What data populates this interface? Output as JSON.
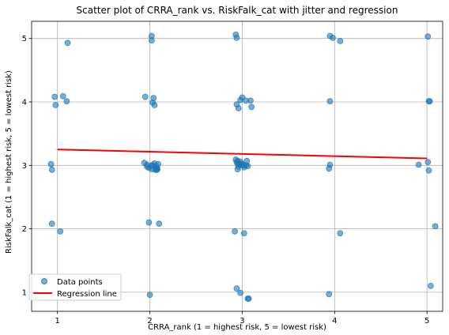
{
  "chart_data": {
    "type": "scatter",
    "title": "Scatter plot of CRRA_rank vs. RiskFalk_cat with jitter and regression",
    "xlabel": "CRRA_rank (1 = highest risk, 5 = lowest risk)",
    "ylabel": "RiskFalk_cat (1 = highest risk, 5 = lowest risk)",
    "xlim": [
      0.72,
      5.17
    ],
    "ylim": [
      0.7,
      5.27
    ],
    "xticks": [
      1,
      2,
      3,
      4,
      5
    ],
    "yticks": [
      1,
      2,
      3,
      4,
      5
    ],
    "grid": true,
    "legend_position": "lower-left",
    "colors": {
      "points": "#1f77b4",
      "regression": "#ff0000"
    },
    "series": [
      {
        "name": "Data points",
        "kind": "scatter",
        "x": [
          1.11,
          0.97,
          1.06,
          1.1,
          0.98,
          0.93,
          0.94,
          0.94,
          1.03,
          1.95,
          2.02,
          2.02,
          1.94,
          2.04,
          2.03,
          2.05,
          1.97,
          1.99,
          2.03,
          2.05,
          2.07,
          2.09,
          2.07,
          1.97,
          2.02,
          2.06,
          2.08,
          1.99,
          2.1,
          2.0,
          2.02,
          2.08,
          2.93,
          2.94,
          2.98,
          3.0,
          2.94,
          2.96,
          3.04,
          3.09,
          2.93,
          3.1,
          2.95,
          2.95,
          2.95,
          2.98,
          3.02,
          2.96,
          3.05,
          2.98,
          3.0,
          3.02,
          3.06,
          2.94,
          3.04,
          2.96,
          2.99,
          2.92,
          3.02,
          2.94,
          2.98,
          3.06,
          3.07,
          3.95,
          3.98,
          4.06,
          3.95,
          3.95,
          3.94,
          4.06,
          3.94,
          5.01,
          5.03,
          5.02,
          5.01,
          4.91,
          5.02,
          5.09,
          5.04
        ],
        "y": [
          4.93,
          4.08,
          4.09,
          4.01,
          3.95,
          3.02,
          2.93,
          2.08,
          1.96,
          4.08,
          4.97,
          5.04,
          3.04,
          4.06,
          3.99,
          3.95,
          3.01,
          2.96,
          3.0,
          3.03,
          2.99,
          3.02,
          2.94,
          2.98,
          2.94,
          2.93,
          2.93,
          2.1,
          2.08,
          0.96,
          3.0,
          2.95,
          5.06,
          5.01,
          4.03,
          4.07,
          3.96,
          3.9,
          4.02,
          4.02,
          3.09,
          3.92,
          3.07,
          2.94,
          3.02,
          3.02,
          3.0,
          2.98,
          3.07,
          3.06,
          3.02,
          2.97,
          2.99,
          3.05,
          3.0,
          3.03,
          3.01,
          1.96,
          1.93,
          1.06,
          0.99,
          0.9,
          0.9,
          5.04,
          5.01,
          4.96,
          4.01,
          3.01,
          2.95,
          1.93,
          0.97,
          5.03,
          4.01,
          4.01,
          3.05,
          3.01,
          2.92,
          2.04,
          1.1
        ]
      },
      {
        "name": "Regression line",
        "kind": "line",
        "x": [
          1,
          5
        ],
        "y": [
          3.25,
          3.11
        ]
      }
    ]
  }
}
